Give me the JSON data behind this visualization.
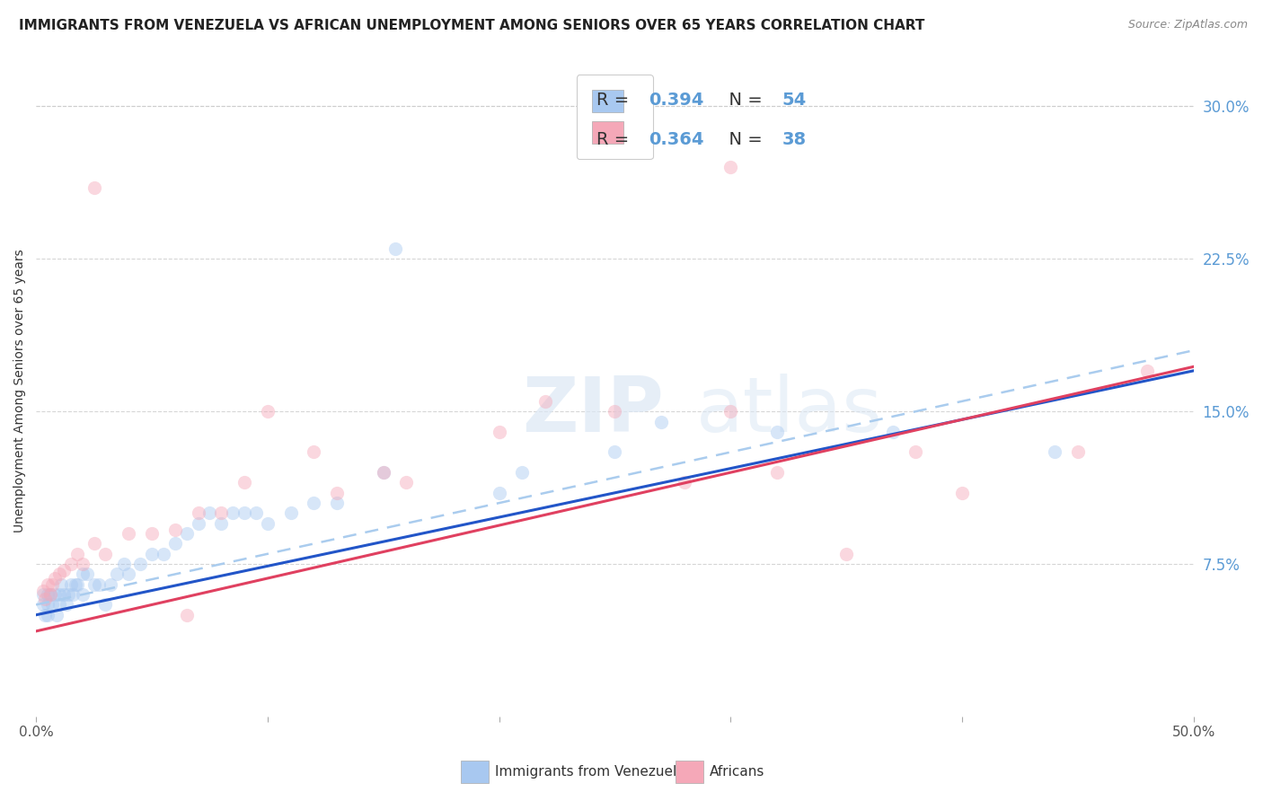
{
  "title": "IMMIGRANTS FROM VENEZUELA VS AFRICAN UNEMPLOYMENT AMONG SENIORS OVER 65 YEARS CORRELATION CHART",
  "source": "Source: ZipAtlas.com",
  "ylabel": "Unemployment Among Seniors over 65 years",
  "legend_label1": "Immigrants from Venezuela",
  "legend_label2": "Africans",
  "r1": 0.394,
  "n1": 54,
  "r2": 0.364,
  "n2": 38,
  "color1": "#a8c8f0",
  "color2": "#f5a8b8",
  "line_color1": "#2255c8",
  "line_color2": "#e04060",
  "line_color_dashed": "#aaccee",
  "xlim": [
    0.0,
    0.5
  ],
  "ylim": [
    0.0,
    0.32
  ],
  "background_color": "#ffffff",
  "grid_color": "#cccccc",
  "title_fontsize": 11,
  "axis_label_fontsize": 10,
  "tick_fontsize": 11,
  "marker_size": 120,
  "marker_alpha": 0.45,
  "line_width": 2.2,
  "blue_x": [
    0.003,
    0.003,
    0.004,
    0.005,
    0.005,
    0.005,
    0.006,
    0.007,
    0.008,
    0.009,
    0.01,
    0.01,
    0.011,
    0.012,
    0.013,
    0.014,
    0.015,
    0.016,
    0.017,
    0.018,
    0.02,
    0.02,
    0.022,
    0.025,
    0.027,
    0.03,
    0.032,
    0.035,
    0.038,
    0.04,
    0.045,
    0.05,
    0.055,
    0.06,
    0.065,
    0.07,
    0.075,
    0.08,
    0.085,
    0.09,
    0.095,
    0.1,
    0.11,
    0.12,
    0.13,
    0.15,
    0.155,
    0.2,
    0.21,
    0.25,
    0.27,
    0.32,
    0.37,
    0.44
  ],
  "blue_y": [
    0.06,
    0.055,
    0.05,
    0.06,
    0.055,
    0.05,
    0.06,
    0.055,
    0.06,
    0.05,
    0.06,
    0.055,
    0.065,
    0.06,
    0.055,
    0.06,
    0.065,
    0.06,
    0.065,
    0.065,
    0.06,
    0.07,
    0.07,
    0.065,
    0.065,
    0.055,
    0.065,
    0.07,
    0.075,
    0.07,
    0.075,
    0.08,
    0.08,
    0.085,
    0.09,
    0.095,
    0.1,
    0.095,
    0.1,
    0.1,
    0.1,
    0.095,
    0.1,
    0.105,
    0.105,
    0.12,
    0.23,
    0.11,
    0.12,
    0.13,
    0.145,
    0.14,
    0.14,
    0.13
  ],
  "pink_x": [
    0.003,
    0.004,
    0.005,
    0.006,
    0.007,
    0.008,
    0.01,
    0.012,
    0.015,
    0.018,
    0.02,
    0.025,
    0.03,
    0.04,
    0.05,
    0.06,
    0.07,
    0.08,
    0.09,
    0.1,
    0.12,
    0.13,
    0.15,
    0.16,
    0.2,
    0.22,
    0.25,
    0.28,
    0.3,
    0.3,
    0.32,
    0.35,
    0.38,
    0.4,
    0.45,
    0.48,
    0.065,
    0.025
  ],
  "pink_y": [
    0.062,
    0.058,
    0.065,
    0.06,
    0.065,
    0.068,
    0.07,
    0.072,
    0.075,
    0.08,
    0.075,
    0.085,
    0.08,
    0.09,
    0.09,
    0.092,
    0.1,
    0.1,
    0.115,
    0.15,
    0.13,
    0.11,
    0.12,
    0.115,
    0.14,
    0.155,
    0.15,
    0.115,
    0.15,
    0.27,
    0.12,
    0.08,
    0.13,
    0.11,
    0.13,
    0.17,
    0.05,
    0.26
  ],
  "watermark_zip": "ZIP",
  "watermark_atlas": "atlas",
  "ytick_positions": [
    0.075,
    0.15,
    0.225,
    0.3
  ],
  "ytick_labels": [
    "7.5%",
    "15.0%",
    "22.5%",
    "30.0%"
  ],
  "xtick_positions": [
    0.0,
    0.1,
    0.2,
    0.3,
    0.4,
    0.5
  ],
  "xtick_labels": [
    "0.0%",
    "",
    "",
    "",
    "",
    "50.0%"
  ],
  "right_axis_color": "#5b9bd5",
  "label_dark": "#333333",
  "line1_intercept": 0.05,
  "line1_slope": 0.24,
  "line2_intercept": 0.042,
  "line2_slope": 0.26,
  "dash_intercept": 0.055,
  "dash_slope": 0.25
}
